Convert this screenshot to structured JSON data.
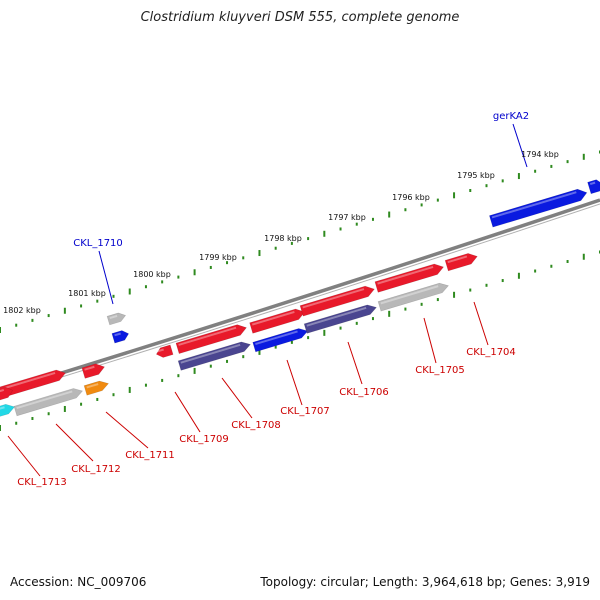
{
  "title": "Clostridium kluyveri DSM 555, complete genome",
  "footer": {
    "accession": "Accession: NC_009706",
    "topology": "Topology: circular; Length: 3,964,618 bp; Genes: 3,919"
  },
  "scale_labels": [
    "1794 kbp",
    "1795 kbp",
    "1796 kbp",
    "1797 kbp",
    "1798 kbp",
    "1799 kbp",
    "1800 kbp",
    "1801 kbp",
    "1802 kbp"
  ],
  "gene_labels_top": [
    "gerKA2",
    "CKL_1710"
  ],
  "gene_labels_bottom": [
    "CKL_1704",
    "CKL_1705",
    "CKL_1706",
    "CKL_1707",
    "CKL_1708",
    "CKL_1709",
    "CKL_1711",
    "CKL_1712",
    "CKL_1713"
  ],
  "colors": {
    "red": "#e8192a",
    "blue": "#0a1ae0",
    "slate": "#4a4590",
    "gray": "#b8b8b8",
    "orange": "#f08a10",
    "cyan": "#22d8e6",
    "backbone": "#808080",
    "tick": "#2f8a1f",
    "label_red": "#cc0000",
    "label_blue": "#0000cc"
  }
}
